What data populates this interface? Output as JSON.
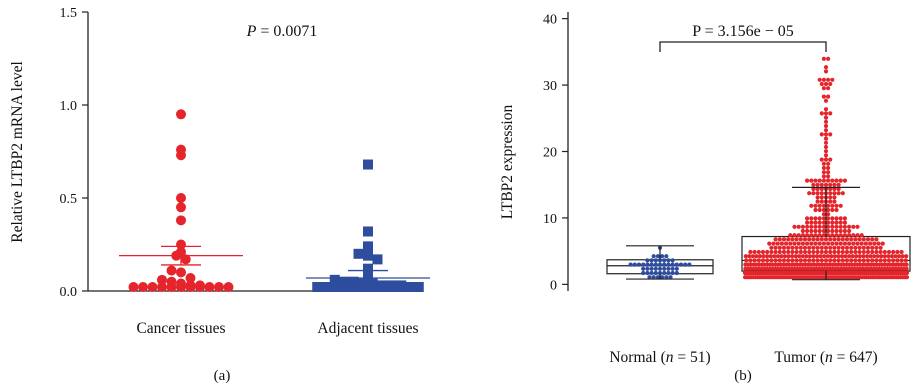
{
  "chart_data": [
    {
      "type": "scatter",
      "panel_label": "(a)",
      "ylabel": "Relative LTBP2 mRNA level",
      "ylim": [
        0,
        1.5
      ],
      "yticks": [
        0.0,
        0.5,
        1.0,
        1.5
      ],
      "ytick_labels": [
        "0.0",
        "0.5",
        "1.0",
        "1.5"
      ],
      "annotation": {
        "italic": "P",
        "text": " = 0.0071"
      },
      "categories": [
        "Cancer tissues",
        "Adjacent tissues"
      ],
      "series": [
        {
          "category": "Cancer tissues",
          "color": "#e4252b",
          "marker": "circle",
          "mean": 0.19,
          "sem_upper": 0.24,
          "sem_lower": 0.14,
          "values": [
            0.95,
            0.76,
            0.73,
            0.5,
            0.45,
            0.38,
            0.25,
            0.21,
            0.19,
            0.17,
            0.11,
            0.1,
            0.07,
            0.06,
            0.05,
            0.04,
            0.03,
            0.03,
            0.02,
            0.02,
            0.01,
            0.01,
            0.01,
            0.01,
            0.0,
            0.0,
            0.0,
            0.0,
            0.0
          ]
        },
        {
          "category": "Adjacent tissues",
          "color": "#2f4d9e",
          "marker": "square",
          "mean": 0.07,
          "sem_upper": 0.11,
          "sem_lower": 0.04,
          "values": [
            0.68,
            0.32,
            0.24,
            0.2,
            0.19,
            0.17,
            0.12,
            0.08,
            0.06,
            0.05,
            0.05,
            0.04,
            0.04,
            0.03,
            0.03,
            0.03,
            0.02,
            0.02,
            0.02,
            0.01,
            0.01,
            0.01,
            0.01,
            0.01,
            0.01,
            0.0,
            0.0,
            0.0,
            0.0
          ]
        }
      ]
    },
    {
      "type": "scatter",
      "panel_label": "(b)",
      "ylabel": "LTBP2 expression",
      "ylim": [
        -1,
        41
      ],
      "yticks": [
        0,
        10,
        20,
        30,
        40
      ],
      "ytick_labels": [
        "0",
        "10",
        "20",
        "30",
        "40"
      ],
      "annotation": {
        "text": "P = 3.156e − 05"
      },
      "categories": [
        {
          "prefix": "Normal (",
          "italic": "n",
          "suffix": " = 51)"
        },
        {
          "prefix": "Tumor (",
          "italic": "n",
          "suffix": " = 647)"
        }
      ],
      "series": [
        {
          "category": "Normal",
          "n": 51,
          "color": "#2f4d9e",
          "marker": "circle",
          "box": {
            "q1": 1.6,
            "median": 2.8,
            "q3": 3.7,
            "whisker_low": 0.8,
            "whisker_high": 5.8
          },
          "range": [
            0.8,
            5.8
          ]
        },
        {
          "category": "Tumor",
          "n": 647,
          "color": "#e4252b",
          "marker": "circle",
          "box": {
            "q1": 2.0,
            "median": 3.6,
            "q3": 7.2,
            "whisker_low": 0.7,
            "whisker_high": 14.6
          },
          "range": [
            0.7,
            34.5
          ]
        }
      ]
    }
  ]
}
